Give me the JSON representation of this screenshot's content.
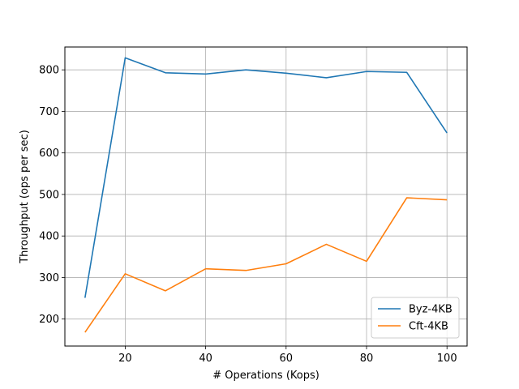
{
  "chart_data": {
    "type": "line",
    "title": "",
    "xlabel": "# Operations (Kops)",
    "ylabel": "Throughput (ops per sec)",
    "xlim": [
      5,
      105
    ],
    "ylim": [
      135,
      855
    ],
    "x": [
      10,
      20,
      30,
      40,
      50,
      60,
      70,
      80,
      90,
      100
    ],
    "x_ticks": [
      20,
      40,
      60,
      80,
      100
    ],
    "y_ticks": [
      200,
      300,
      400,
      500,
      600,
      700,
      800
    ],
    "grid": true,
    "legend_position": "lower-right",
    "series": [
      {
        "name": "Byz-4KB",
        "color": "#1f77b4",
        "values": [
          251,
          829,
          793,
          790,
          800,
          792,
          781,
          796,
          794,
          648
        ]
      },
      {
        "name": "Cft-4KB",
        "color": "#ff7f0e",
        "values": [
          168,
          309,
          268,
          321,
          317,
          333,
          380,
          339,
          492,
          487
        ]
      }
    ]
  }
}
